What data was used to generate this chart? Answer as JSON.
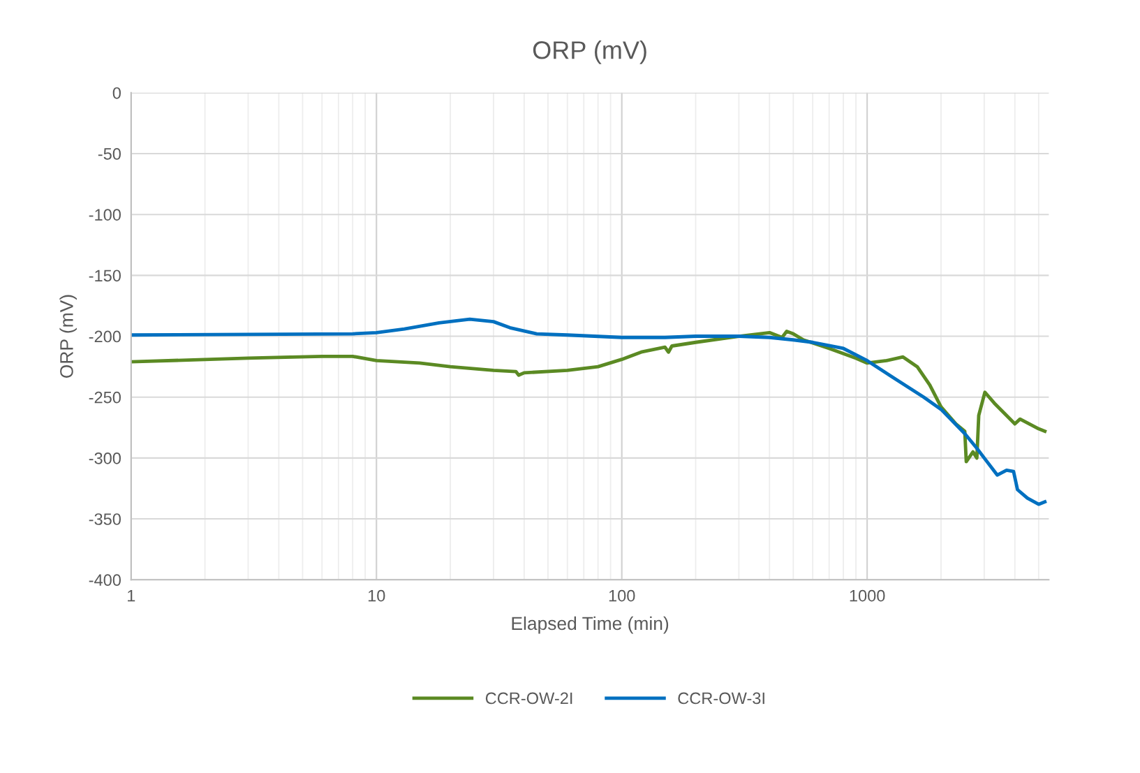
{
  "chart_data": {
    "type": "line",
    "title": "ORP (mV)",
    "xlabel": "Elapsed Time (min)",
    "ylabel": "ORP (mV)",
    "log": "x",
    "grid": true,
    "legend": "bottom",
    "marker": "none",
    "line_style": "solid",
    "xlim": [
      1,
      5500
    ],
    "xticks": [
      1,
      10,
      100,
      1000
    ],
    "ylim": [
      -400,
      0
    ],
    "yticks": [
      -400,
      -350,
      -300,
      -250,
      -200,
      -150,
      -100,
      -50,
      0
    ],
    "series": [
      {
        "name": "CCR-OW-2I",
        "color": "#5b8a23",
        "x": [
          1,
          3,
          6,
          8,
          10,
          15,
          20,
          30,
          37,
          38,
          40,
          60,
          80,
          100,
          120,
          150,
          155,
          160,
          200,
          300,
          400,
          450,
          470,
          500,
          550,
          700,
          900,
          1000,
          1200,
          1400,
          1600,
          1800,
          2000,
          2300,
          2500,
          2535,
          2700,
          2800,
          2850,
          3020,
          3300,
          4000,
          4200,
          5000,
          5300
        ],
        "values": [
          -221,
          -218,
          -216.5,
          -216.5,
          -220,
          -222,
          -225,
          -228,
          -229,
          -232,
          -230,
          -228,
          -225,
          -219,
          -213,
          -209,
          -213,
          -208,
          -205,
          -200,
          -197,
          -201,
          -196,
          -198,
          -203,
          -210,
          -218,
          -222,
          -220,
          -217,
          -225,
          -240,
          -258,
          -272,
          -278,
          -303,
          -295,
          -300,
          -265,
          -246,
          -255,
          -272,
          -268,
          -276,
          -278
        ]
      },
      {
        "name": "CCR-OW-3I",
        "color": "#0070c0",
        "x": [
          1,
          8,
          10,
          13,
          18,
          24,
          30,
          35,
          45,
          60,
          100,
          150,
          200,
          300,
          400,
          500,
          600,
          800,
          1000,
          1300,
          1700,
          2000,
          2500,
          2800,
          3000,
          3390,
          3700,
          3950,
          4100,
          4500,
          5000,
          5300
        ],
        "values": [
          -199,
          -198,
          -197,
          -194,
          -189,
          -186,
          -188,
          -193,
          -198,
          -199,
          -201,
          -201,
          -200,
          -200,
          -201,
          -203,
          -205,
          -210,
          -220,
          -235,
          -250,
          -260,
          -280,
          -292,
          -300,
          -314,
          -310,
          -311,
          -326,
          -333,
          -338,
          -336
        ]
      }
    ]
  }
}
